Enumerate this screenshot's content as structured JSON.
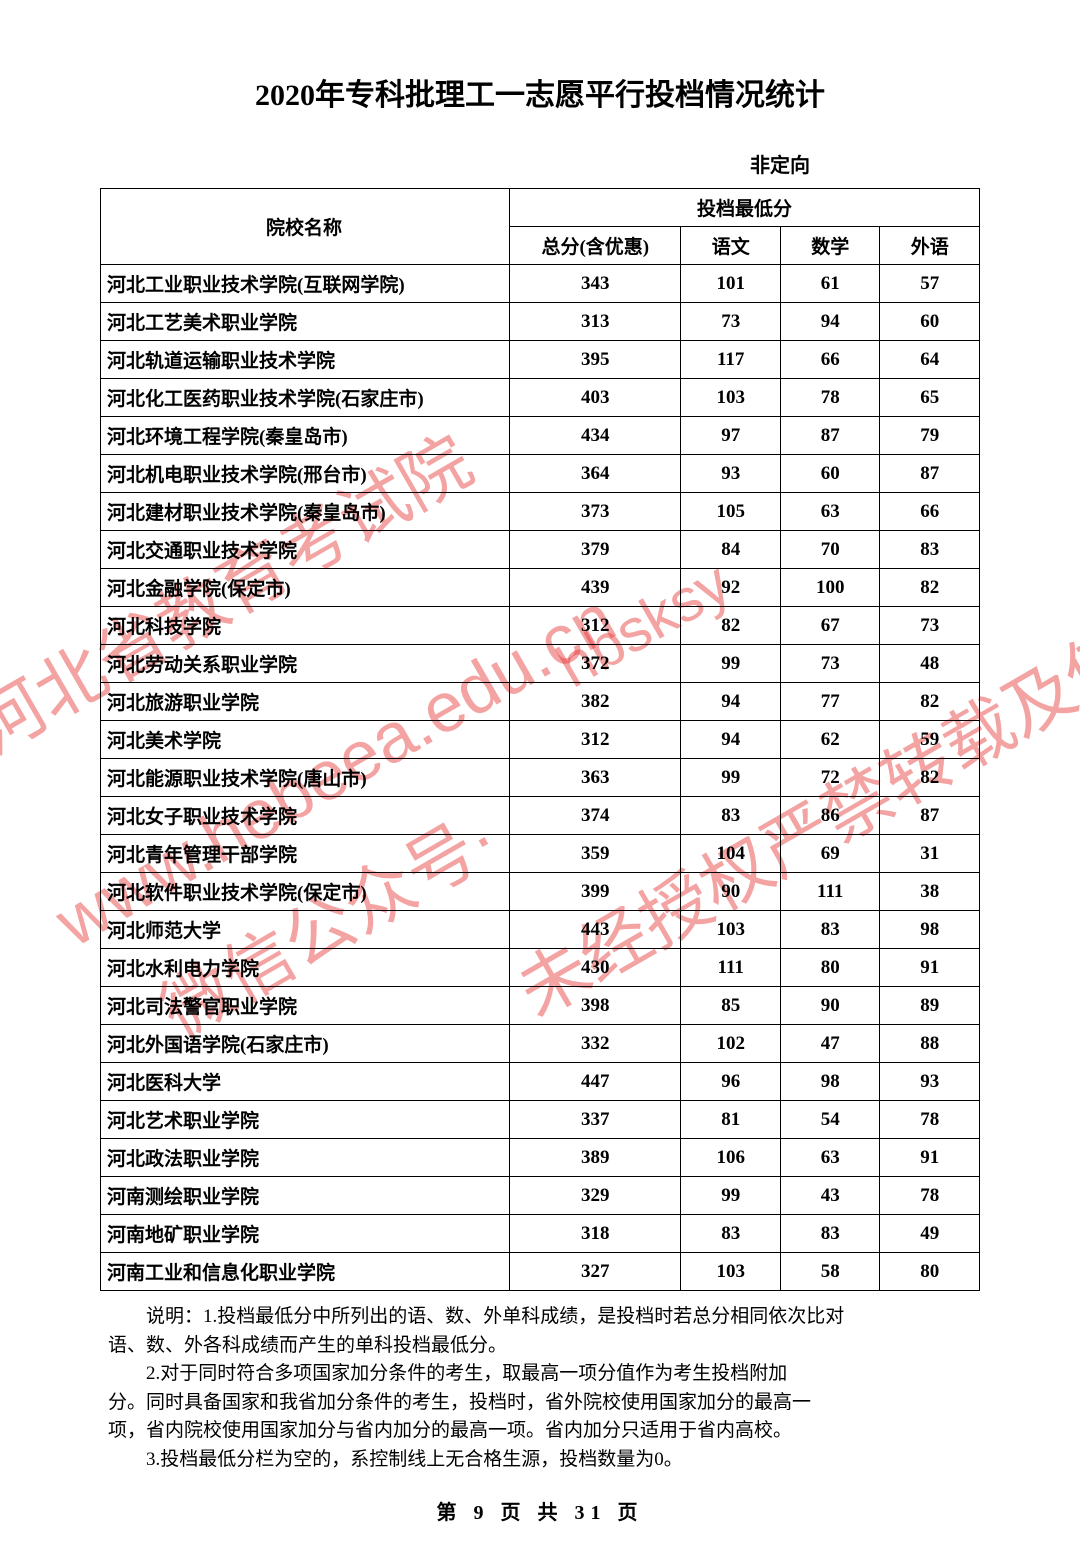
{
  "title": "2020年专科批理工一志愿平行投档情况统计",
  "subtitle": "非定向",
  "columns": {
    "name": "院校名称",
    "scoreGroup": "投档最低分",
    "total": "总分(含优惠)",
    "chinese": "语文",
    "math": "数学",
    "foreign": "外语"
  },
  "rows": [
    {
      "name": "河北工业职业技术学院(互联网学院)",
      "total": "343",
      "chinese": "101",
      "math": "61",
      "foreign": "57"
    },
    {
      "name": "河北工艺美术职业学院",
      "total": "313",
      "chinese": "73",
      "math": "94",
      "foreign": "60"
    },
    {
      "name": "河北轨道运输职业技术学院",
      "total": "395",
      "chinese": "117",
      "math": "66",
      "foreign": "64"
    },
    {
      "name": "河北化工医药职业技术学院(石家庄市)",
      "total": "403",
      "chinese": "103",
      "math": "78",
      "foreign": "65"
    },
    {
      "name": "河北环境工程学院(秦皇岛市)",
      "total": "434",
      "chinese": "97",
      "math": "87",
      "foreign": "79"
    },
    {
      "name": "河北机电职业技术学院(邢台市)",
      "total": "364",
      "chinese": "93",
      "math": "60",
      "foreign": "87"
    },
    {
      "name": "河北建材职业技术学院(秦皇岛市)",
      "total": "373",
      "chinese": "105",
      "math": "63",
      "foreign": "66"
    },
    {
      "name": "河北交通职业技术学院",
      "total": "379",
      "chinese": "84",
      "math": "70",
      "foreign": "83"
    },
    {
      "name": "河北金融学院(保定市)",
      "total": "439",
      "chinese": "92",
      "math": "100",
      "foreign": "82"
    },
    {
      "name": "河北科技学院",
      "total": "312",
      "chinese": "82",
      "math": "67",
      "foreign": "73"
    },
    {
      "name": "河北劳动关系职业学院",
      "total": "372",
      "chinese": "99",
      "math": "73",
      "foreign": "48"
    },
    {
      "name": "河北旅游职业学院",
      "total": "382",
      "chinese": "94",
      "math": "77",
      "foreign": "82"
    },
    {
      "name": "河北美术学院",
      "total": "312",
      "chinese": "94",
      "math": "62",
      "foreign": "59"
    },
    {
      "name": "河北能源职业技术学院(唐山市)",
      "total": "363",
      "chinese": "99",
      "math": "72",
      "foreign": "82"
    },
    {
      "name": "河北女子职业技术学院",
      "total": "374",
      "chinese": "83",
      "math": "86",
      "foreign": "87"
    },
    {
      "name": "河北青年管理干部学院",
      "total": "359",
      "chinese": "104",
      "math": "69",
      "foreign": "31"
    },
    {
      "name": "河北软件职业技术学院(保定市)",
      "total": "399",
      "chinese": "90",
      "math": "111",
      "foreign": "38"
    },
    {
      "name": "河北师范大学",
      "total": "443",
      "chinese": "103",
      "math": "83",
      "foreign": "98"
    },
    {
      "name": "河北水利电力学院",
      "total": "430",
      "chinese": "111",
      "math": "80",
      "foreign": "91"
    },
    {
      "name": "河北司法警官职业学院",
      "total": "398",
      "chinese": "85",
      "math": "90",
      "foreign": "89"
    },
    {
      "name": "河北外国语学院(石家庄市)",
      "total": "332",
      "chinese": "102",
      "math": "47",
      "foreign": "88"
    },
    {
      "name": "河北医科大学",
      "total": "447",
      "chinese": "96",
      "math": "98",
      "foreign": "93"
    },
    {
      "name": "河北艺术职业学院",
      "total": "337",
      "chinese": "81",
      "math": "54",
      "foreign": "78"
    },
    {
      "name": "河北政法职业学院",
      "total": "389",
      "chinese": "106",
      "math": "63",
      "foreign": "91"
    },
    {
      "name": "河南测绘职业学院",
      "total": "329",
      "chinese": "99",
      "math": "43",
      "foreign": "78"
    },
    {
      "name": "河南地矿职业学院",
      "total": "318",
      "chinese": "83",
      "math": "83",
      "foreign": "49"
    },
    {
      "name": "河南工业和信息化职业学院",
      "total": "327",
      "chinese": "103",
      "math": "58",
      "foreign": "80"
    }
  ],
  "notes": {
    "label": "说明：",
    "line1a": "1.投档最低分中所列出的语、数、外单科成绩，是投档时若总分相同依次比对",
    "line1b": "语、数、外各科成绩而产生的单科投档最低分。",
    "line2a": "2.对于同时符合多项国家加分条件的考生，取最高一项分值作为考生投档附加",
    "line2b": "分。同时具备国家和我省加分条件的考生，投档时，省外院校使用国家加分的最高一",
    "line2c": "项，省内院校使用国家加分与省内加分的最高一项。省内加分只适用于省内高校。",
    "line3": "3.投档最低分栏为空的，系控制线上无合格生源，投档数量为0。"
  },
  "pager": {
    "prefix": "第",
    "current": "9",
    "mid": "页 共",
    "total": "31",
    "suffix": "页"
  },
  "watermark": {
    "text1": "河北省教育考试院",
    "text2": "www.hebeea.edu.cn",
    "text3": "微信公众号·",
    "text4": "未经授权严禁转载及使用",
    "text5": "hbsksy"
  },
  "colors": {
    "watermark": "rgba(230,50,50,0.45)",
    "border": "#000000",
    "background": "#ffffff"
  }
}
